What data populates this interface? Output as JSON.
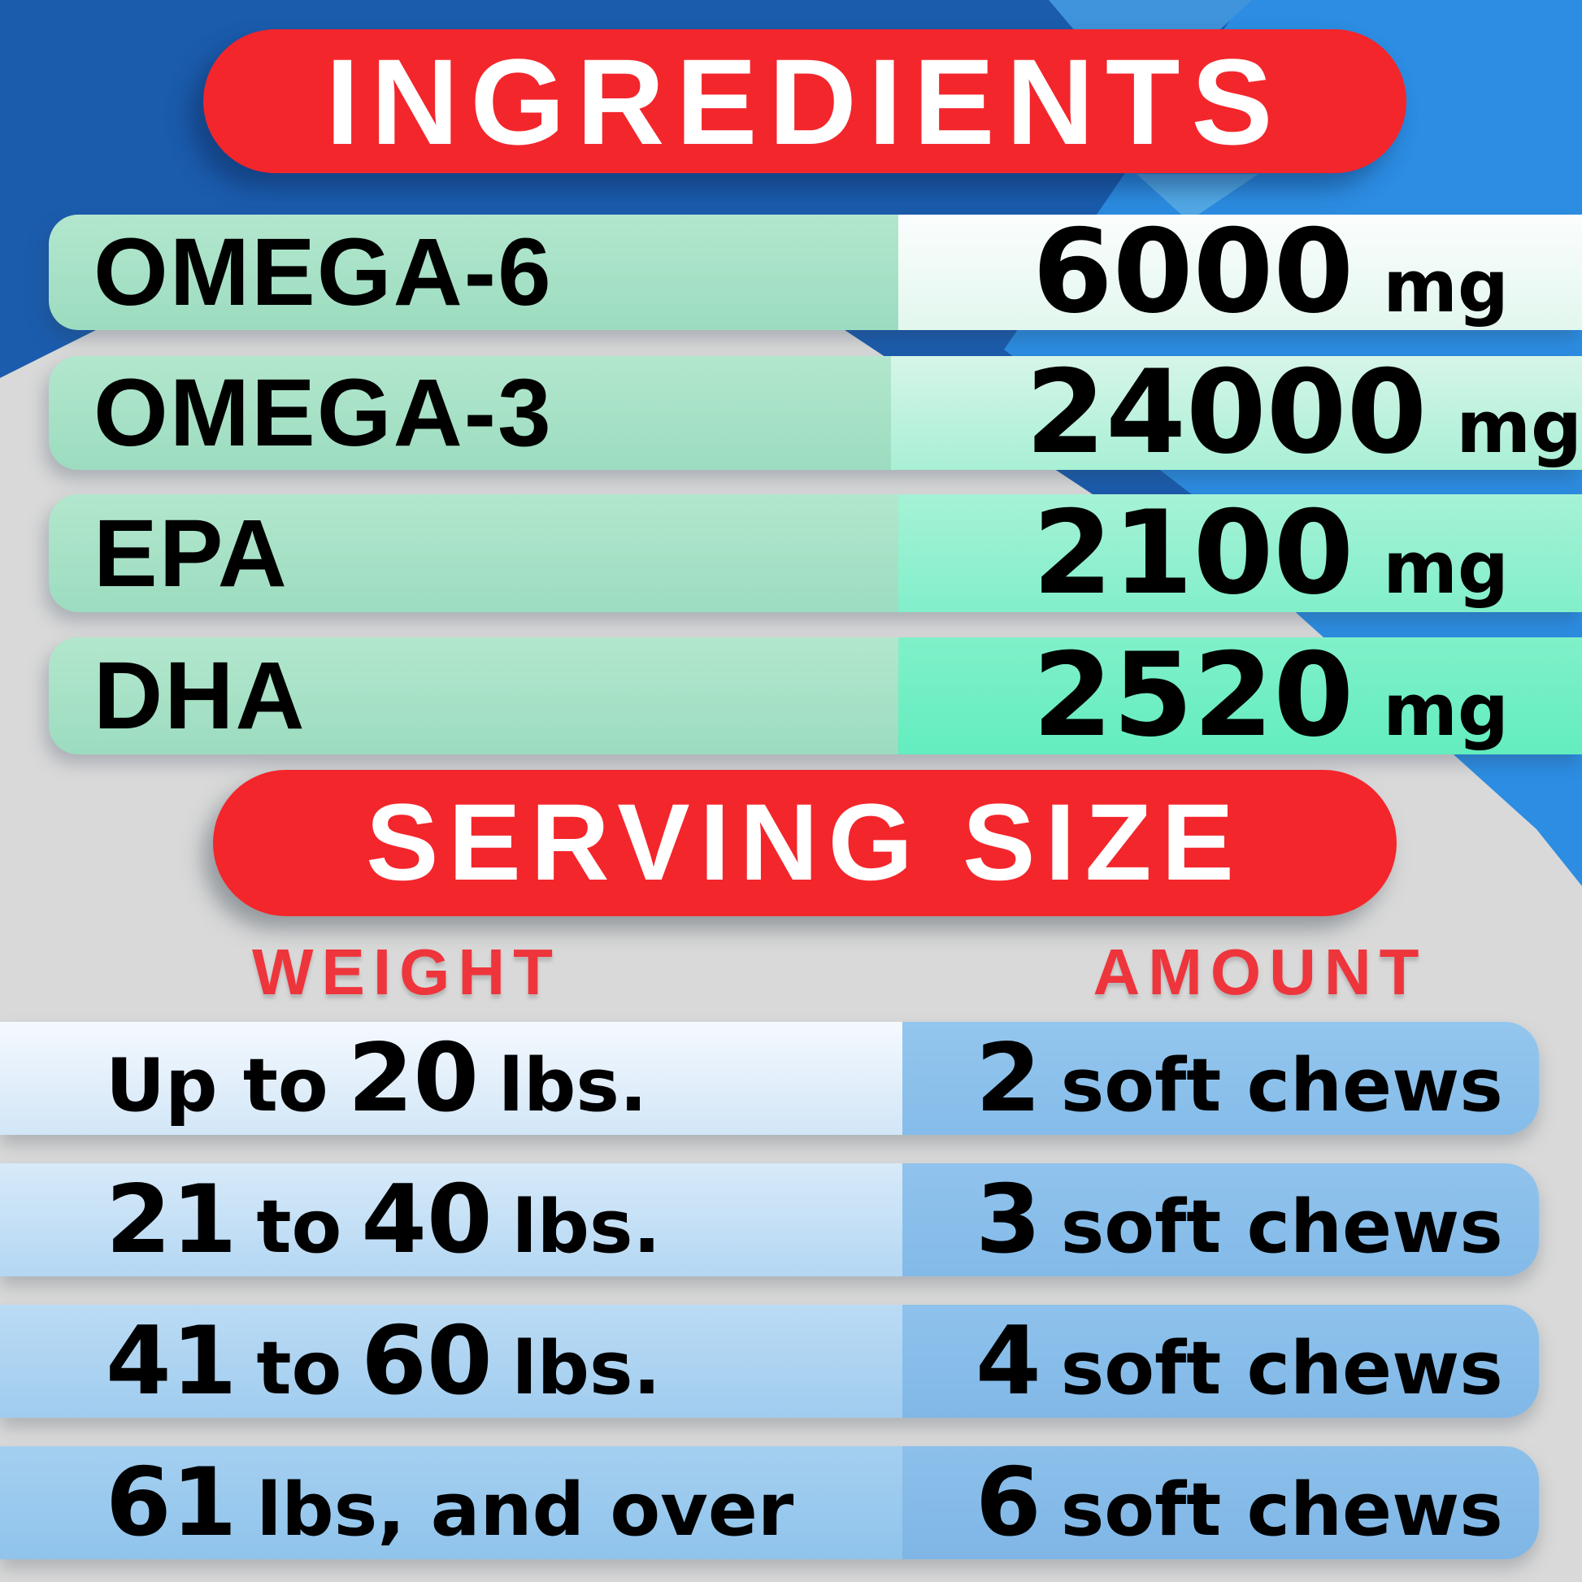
{
  "colors": {
    "bg": "#d9d9d9",
    "blue_dark": "#1b5cad",
    "blue_bright": "#2c8de2",
    "accent1": "#3f94db",
    "accent2": "#53aae7",
    "red": "#f3262c",
    "label_red": "#ee353c",
    "text": "#000000",
    "banner_text": "#ffffff",
    "ingredient_green": "#a9e2c6",
    "serving_blue": "#8fc2ec"
  },
  "ingredients": {
    "title": "INGREDIENTS",
    "rows": [
      {
        "name": "OMEGA-6",
        "value": "6000",
        "unit": "mg"
      },
      {
        "name": "OMEGA-3",
        "value": "24000",
        "unit": "mg"
      },
      {
        "name": "EPA",
        "value": "2100",
        "unit": "mg"
      },
      {
        "name": "DHA",
        "value": "2520",
        "unit": "mg"
      }
    ]
  },
  "serving": {
    "title": "SERVING SIZE",
    "weight_header": "WEIGHT",
    "amount_header": "AMOUNT",
    "rows": [
      {
        "weight": [
          [
            "Up to",
            "s"
          ],
          [
            "20",
            "b"
          ],
          [
            "lbs.",
            "s"
          ]
        ],
        "amount": [
          [
            "2",
            "b"
          ],
          [
            "soft chews",
            "s"
          ]
        ]
      },
      {
        "weight": [
          [
            "21",
            "b"
          ],
          [
            "to",
            "s"
          ],
          [
            "40",
            "b"
          ],
          [
            "lbs.",
            "s"
          ]
        ],
        "amount": [
          [
            "3",
            "b"
          ],
          [
            "soft chews",
            "s"
          ]
        ]
      },
      {
        "weight": [
          [
            "41",
            "b"
          ],
          [
            "to",
            "s"
          ],
          [
            "60",
            "b"
          ],
          [
            "lbs.",
            "s"
          ]
        ],
        "amount": [
          [
            "4",
            "b"
          ],
          [
            "soft chews",
            "s"
          ]
        ]
      },
      {
        "weight": [
          [
            "61",
            "b"
          ],
          [
            "lbs, and over",
            "s"
          ]
        ],
        "amount": [
          [
            "6",
            "b"
          ],
          [
            "soft chews",
            "s"
          ]
        ]
      }
    ]
  }
}
